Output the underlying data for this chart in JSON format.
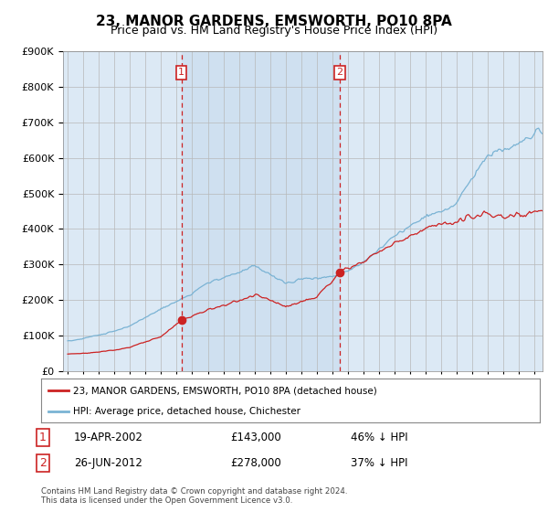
{
  "title": "23, MANOR GARDENS, EMSWORTH, PO10 8PA",
  "subtitle": "Price paid vs. HM Land Registry's House Price Index (HPI)",
  "legend_line1": "23, MANOR GARDENS, EMSWORTH, PO10 8PA (detached house)",
  "legend_line2": "HPI: Average price, detached house, Chichester",
  "sale1_date": "19-APR-2002",
  "sale1_price": 143000,
  "sale1_label": "£143,000",
  "sale1_pct": "46% ↓ HPI",
  "sale2_date": "26-JUN-2012",
  "sale2_price": 278000,
  "sale2_label": "£278,000",
  "sale2_pct": "37% ↓ HPI",
  "sale1_year": 2002.3,
  "sale2_year": 2012.48,
  "footnote1": "Contains HM Land Registry data © Crown copyright and database right 2024.",
  "footnote2": "This data is licensed under the Open Government Licence v3.0.",
  "hpi_color": "#7ab3d4",
  "price_color": "#cc2222",
  "vline_color": "#cc2222",
  "shade_color": "#dae8f5",
  "bg_color": "#dce9f5",
  "grid_color": "#b8b8b8",
  "ylim": [
    0,
    900000
  ],
  "xlim_start": 1994.7,
  "xlim_end": 2025.5
}
